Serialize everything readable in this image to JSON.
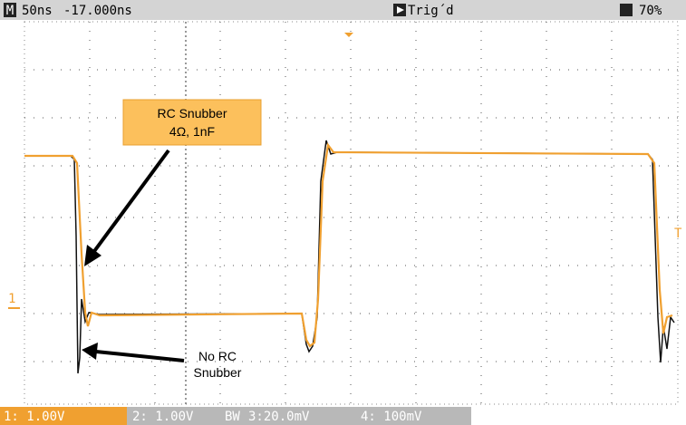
{
  "header": {
    "mode": "M",
    "timebase": "50ns",
    "offset": "-17.000ns",
    "trigger": "Trig´d",
    "battery": "70%"
  },
  "markers": {
    "ch1": "1",
    "trigger": "T"
  },
  "annotations": {
    "snubber_title": "RC Snubber",
    "snubber_values": "4Ω, 1nF",
    "no_snubber_1": "No RC",
    "no_snubber_2": "Snubber"
  },
  "footer": {
    "ch1": "1: 1.00V",
    "ch2": "2: 1.00V",
    "bw": "BW",
    "ch3": "3:20.0mV",
    "ch4": "4: 100mV"
  }
}
